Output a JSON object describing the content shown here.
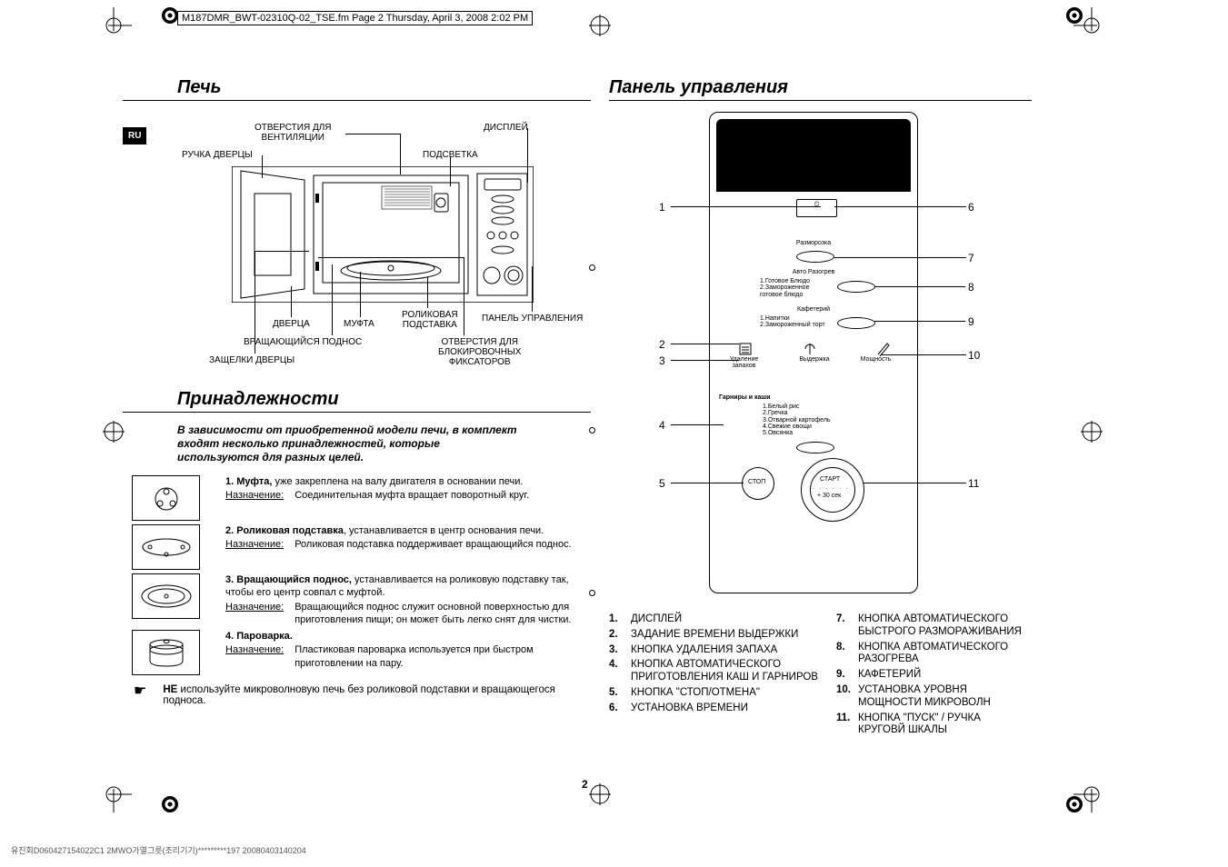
{
  "header_text": "M187DMR_BWT-02310Q-02_TSE.fm  Page 2  Thursday, April 3, 2008  2:02 PM",
  "lang_tag": "RU",
  "page_number": "2",
  "footer_code": "유진회D060427154022C1 2MWO가열그릇(조리기기)*********197 20080403140204",
  "section_oven_title": "Печь",
  "section_accessories_title": "Принадлежности",
  "section_panel_title": "Панель управления",
  "oven_labels": {
    "vent": "ОТВЕРСТИЯ ДЛЯ\nВЕНТИЛЯЦИИ",
    "display": "ДИСПЛЕЙ",
    "handle": "РУЧКА ДВЕРЦЫ",
    "light": "ПОДСВЕТКА",
    "door": "ДВЕРЦА",
    "coupler": "МУФТА",
    "roller": "РОЛИКОВАЯ\nПОДСТАВКА",
    "control": "ПАНЕЛЬ УПРАВЛЕНИЯ",
    "tray": "ВРАЩАЮЩИЙСЯ ПОДНОС",
    "latch": "ЗАЩЕЛКИ ДВЕРЦЫ",
    "lockholes": "ОТВЕРСТИЯ ДЛЯ\nБЛОКИРОВОЧНЫХ\nФИКСАТОРОВ"
  },
  "accessories_intro": "В зависимости от приобретенной модели печи, в комплект входят несколько принадлежностей, которые используются для разных целей.",
  "purpose_label": "Назначение:",
  "accessories": [
    {
      "num": "1.",
      "name": "Муфта,",
      "desc": " уже закреплена на валу двигателя в основании печи.",
      "purpose": "Соединительная муфта вращает поворотный круг."
    },
    {
      "num": "2.",
      "name": "Роликовая подставка",
      "desc": ", устанавливается в центр основания печи.",
      "purpose": "Роликовая подставка поддерживает вращающийся поднос."
    },
    {
      "num": "3.",
      "name": "Вращающийся поднос,",
      "desc": " устанавливается на роликовую подставку так, чтобы его центр совпал с муфтой.",
      "purpose": "Вращающийся поднос служит основной поверхностью для приготовления пищи; он может быть легко снят для чистки."
    },
    {
      "num": "4.",
      "name": "Пароварка.",
      "desc": "",
      "purpose": "Пластиковая пароварка используется при быстром приготовлении на пару."
    }
  ],
  "note_bold": "НЕ",
  "note_text": " используйте микроволновую печь без роликовой подставки и вращающегося подноса.",
  "panel_text": {
    "defrost": "Разморозка",
    "autoheat": "Авто Разогрев",
    "opts1": "1.Готовое Блюдо\n2.Замороженное\nготовое блюдо",
    "cafe": "Кафетерий",
    "opts2": "1.Напитки\n2.Замороженный торт",
    "odor": "Удаление запахов",
    "hold": "Выдержка",
    "power": "Мощность",
    "porridge_title": "Гарниры и каши",
    "porridge": "1.Белый рис\n2.Гречка\n3.Отварной картофель\n4.Свежие овощи\n5.Овсянка",
    "stop": "СТОП",
    "start": "СТАРТ",
    "plus30": "+ 30 сек",
    "display_icon": "⏲"
  },
  "panel_legend_left": [
    {
      "num": "1.",
      "txt": "ДИСПЛЕЙ"
    },
    {
      "num": "2.",
      "txt": "ЗАДАНИЕ ВРЕМЕНИ ВЫДЕРЖКИ"
    },
    {
      "num": "3.",
      "txt": "КНОПКА УДАЛЕНИЯ ЗАПАХА"
    },
    {
      "num": "4.",
      "txt": "КНОПКА АВТОМАТИЧЕСКОГО ПРИГОТОВЛЕНИЯ КАШ И ГАРНИРОВ"
    },
    {
      "num": "5.",
      "txt": "КНОПКА \"СТОП/ОТМЕНА\""
    },
    {
      "num": "6.",
      "txt": "УСТАНОВКА ВРЕМЕНИ"
    }
  ],
  "panel_legend_right": [
    {
      "num": "7.",
      "txt": "КНОПКА АВТОМАТИЧЕСКОГО БЫСТРОГО РАЗМОРАЖИВАНИЯ"
    },
    {
      "num": "8.",
      "txt": "КНОПКА АВТОМАТИЧЕСКОГО РАЗОГРЕВА"
    },
    {
      "num": "9.",
      "txt": "КАФЕТЕРИЙ"
    },
    {
      "num": "10.",
      "txt": "УСТАНОВКА УРОВНЯ МОЩНОСТИ МИКРОВОЛН"
    },
    {
      "num": "11.",
      "txt": "КНОПКА \"ПУСК\" / РУЧКА КРУГОВЙ ШКАЛЫ"
    }
  ],
  "callout_nums": {
    "left": [
      "1",
      "2",
      "3",
      "4",
      "5"
    ],
    "right": [
      "6",
      "7",
      "8",
      "9",
      "10",
      "11"
    ]
  }
}
